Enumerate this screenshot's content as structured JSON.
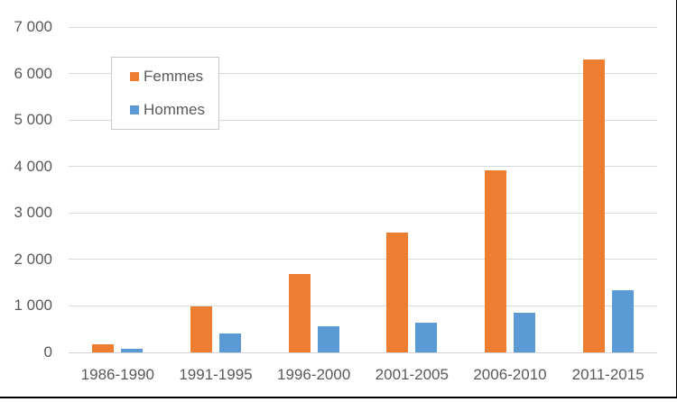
{
  "window": {
    "background": "#FFFFFF",
    "frame_border_color": "#000000"
  },
  "chart_data": {
    "type": "bar",
    "title": "",
    "xlabel": "",
    "ylabel": "",
    "categories": [
      "1986-1990",
      "1991-1995",
      "1996-2000",
      "2001-2005",
      "2006-2010",
      "2011-2015"
    ],
    "series": [
      {
        "name": "Femmes",
        "color": "#ED7D31",
        "values": [
          170,
          980,
          1690,
          2580,
          3920,
          6300
        ]
      },
      {
        "name": "Hommes",
        "color": "#5B9BD5",
        "values": [
          80,
          400,
          560,
          640,
          860,
          1330
        ]
      }
    ],
    "ylim": [
      0,
      7000
    ],
    "ytick_interval": 1000,
    "ytick_labels": [
      "0",
      "1 000",
      "2 000",
      "3 000",
      "4 000",
      "5 000",
      "6 000",
      "7 000"
    ],
    "grid": true,
    "legend": {
      "entries": [
        "Femmes",
        "Hommes"
      ],
      "position": "inside-top-left"
    }
  },
  "styles": {
    "grid_color": "#D9D9D9",
    "axis_line_color": "#D2D2D2",
    "label_color": "#595959",
    "legend_border_color": "#C9C9C9",
    "legend_bg": "#FFFFFF"
  }
}
